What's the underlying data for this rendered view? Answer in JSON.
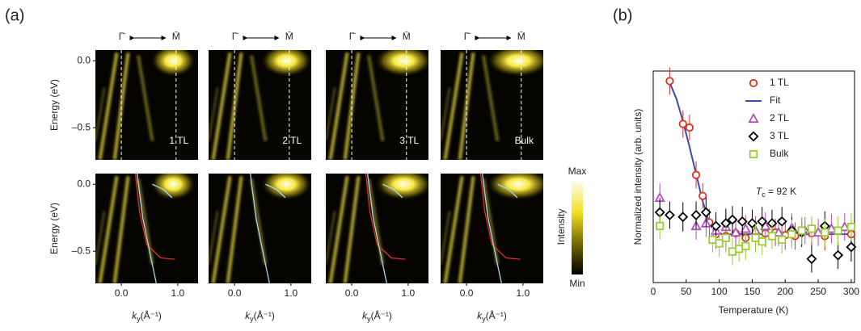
{
  "panel_a": {
    "label": "(a)",
    "gamma": "Γ̄",
    "m": "M̄",
    "ylabel": "Energy (eV)",
    "yticks": [
      {
        "value": 0,
        "label": "0.0"
      },
      {
        "value": -0.5,
        "label": "–0.5"
      }
    ],
    "xticks": [
      {
        "value": 0,
        "label": "0.0"
      },
      {
        "value": 1,
        "label": "1.0"
      }
    ],
    "xlabel": {
      "symbol": "k",
      "subscript": "y",
      "unit": "(Å⁻¹)"
    },
    "xlim": [
      -0.46,
      1.36
    ],
    "ylim": [
      -0.74,
      0.08
    ],
    "samples": [
      "1 TL",
      "2 TL",
      "3 TL",
      "Bulk"
    ],
    "colorbar": {
      "max": "Max",
      "label": "Intensity",
      "min": "Min"
    }
  },
  "chart_data": {
    "type": "scatter",
    "panel_label": "(b)",
    "xlabel": "Temperature (K)",
    "ylabel": "Normalized intensity (arb. units)",
    "annotation": {
      "symbol": "T",
      "subscript": "c",
      "text": " = 92 K"
    },
    "xlim": [
      0,
      305
    ],
    "ylim": [
      0.23,
      2.55
    ],
    "xticks": [
      0,
      50,
      100,
      150,
      200,
      250,
      300
    ],
    "series": [
      {
        "name": "1 TL",
        "color": "#e03020",
        "marker": "circle",
        "x": [
          25,
          45,
          55,
          65,
          75,
          85,
          95,
          110,
          125,
          140,
          155,
          170,
          185,
          200,
          215,
          240,
          260,
          300
        ],
        "values": [
          2.44,
          1.97,
          1.93,
          1.41,
          1.18,
          0.89,
          0.76,
          0.74,
          0.77,
          0.72,
          0.76,
          0.77,
          0.78,
          0.75,
          0.74,
          0.77,
          0.74,
          0.76
        ],
        "errors": [
          0.15,
          0.15,
          0.14,
          0.15,
          0.14,
          0.15,
          0.16,
          0.16,
          0.15,
          0.15,
          0.16,
          0.15,
          0.15,
          0.16,
          0.15,
          0.15,
          0.16,
          0.15
        ]
      },
      {
        "name": "Fit",
        "color": "#3a4bb0",
        "x": [
          25,
          35,
          45,
          55,
          65,
          75,
          85,
          95,
          105,
          300
        ],
        "values": [
          2.42,
          2.25,
          2.0,
          1.72,
          1.42,
          1.12,
          0.88,
          0.78,
          0.76,
          0.76
        ]
      },
      {
        "name": "2 TL",
        "color": "#b050c0",
        "marker": "triangle",
        "x": [
          10,
          65,
          80,
          95,
          110,
          125,
          140,
          155,
          170,
          190,
          210,
          230,
          250,
          270,
          290
        ],
        "values": [
          1.16,
          0.85,
          0.88,
          0.8,
          0.84,
          0.78,
          0.82,
          0.8,
          0.85,
          0.78,
          0.83,
          0.8,
          0.78,
          0.82,
          0.84
        ],
        "errors": [
          0.16,
          0.15,
          0.15,
          0.15,
          0.16,
          0.15,
          0.15,
          0.16,
          0.15,
          0.15,
          0.16,
          0.15,
          0.15,
          0.16,
          0.15
        ]
      },
      {
        "name": "3 TL",
        "color": "#000000",
        "marker": "diamond",
        "x": [
          10,
          25,
          45,
          65,
          80,
          95,
          110,
          120,
          135,
          150,
          165,
          180,
          195,
          210,
          225,
          240,
          260,
          280,
          300
        ],
        "values": [
          1.0,
          0.97,
          0.95,
          0.97,
          1.0,
          0.85,
          0.88,
          0.92,
          0.9,
          0.88,
          0.9,
          0.88,
          0.9,
          0.8,
          0.78,
          0.49,
          0.85,
          0.53,
          0.62
        ],
        "errors": [
          0.16,
          0.15,
          0.16,
          0.15,
          0.16,
          0.15,
          0.16,
          0.15,
          0.16,
          0.15,
          0.16,
          0.15,
          0.16,
          0.15,
          0.16,
          0.15,
          0.16,
          0.15,
          0.16
        ]
      },
      {
        "name": "Bulk",
        "color": "#9acd32",
        "marker": "square",
        "x": [
          10,
          90,
          100,
          110,
          120,
          130,
          140,
          155,
          165,
          180,
          195,
          210,
          225,
          240,
          260,
          280,
          300
        ],
        "values": [
          0.85,
          0.7,
          0.66,
          0.72,
          0.57,
          0.6,
          0.63,
          0.72,
          0.68,
          0.74,
          0.7,
          0.76,
          0.8,
          0.82,
          0.78,
          0.8,
          0.84
        ],
        "errors": [
          0.15,
          0.14,
          0.15,
          0.16,
          0.15,
          0.14,
          0.15,
          0.16,
          0.15,
          0.14,
          0.15,
          0.16,
          0.15,
          0.14,
          0.15,
          0.16,
          0.15
        ]
      }
    ]
  }
}
